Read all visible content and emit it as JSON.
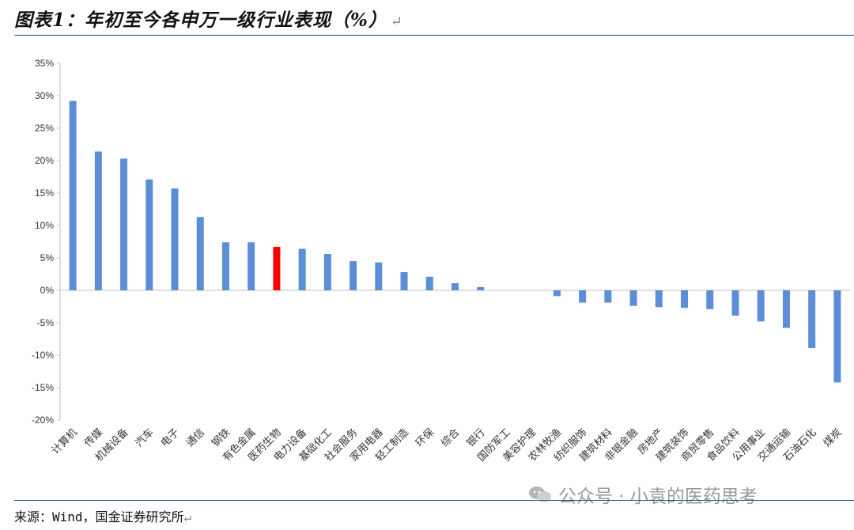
{
  "title": "图表1：年初至今各申万一级行业表现（%）",
  "source": "来源：Wind，国金证券研究所",
  "watermark": "公众号 · 小袁的医药思考",
  "colors": {
    "bar": "#5b8ed6",
    "highlight": "#ff0000",
    "axis": "#c0c0c0"
  },
  "chart_data": {
    "type": "bar",
    "title": "",
    "xlabel": "",
    "ylabel": "",
    "ylim": [
      -20,
      35
    ],
    "yticks": [
      "35%",
      "30%",
      "25%",
      "20%",
      "15%",
      "10%",
      "5%",
      "0%",
      "-5%",
      "-10%",
      "-15%",
      "-20%"
    ],
    "categories": [
      "计算机",
      "传媒",
      "机械设备",
      "汽车",
      "电子",
      "通信",
      "钢铁",
      "有色金属",
      "医药生物",
      "电力设备",
      "基础化工",
      "社会服务",
      "家用电器",
      "轻工制造",
      "环保",
      "综合",
      "银行",
      "国防军工",
      "美容护理",
      "农林牧渔",
      "纺织服饰",
      "建筑材料",
      "非银金融",
      "房地产",
      "建筑装饰",
      "商贸零售",
      "食品饮料",
      "公用事业",
      "交通运输",
      "石油石化",
      "煤炭"
    ],
    "values": [
      29.2,
      21.4,
      20.3,
      17.1,
      15.7,
      11.3,
      7.4,
      7.4,
      6.7,
      6.4,
      5.6,
      4.5,
      4.3,
      2.8,
      2.1,
      1.1,
      0.5,
      0.0,
      0.0,
      -0.9,
      -1.9,
      -1.9,
      -2.4,
      -2.6,
      -2.7,
      -2.9,
      -3.9,
      -4.8,
      -5.8,
      -8.9,
      -14.2
    ],
    "highlight": "医药生物",
    "grid": false,
    "legend": "none"
  }
}
